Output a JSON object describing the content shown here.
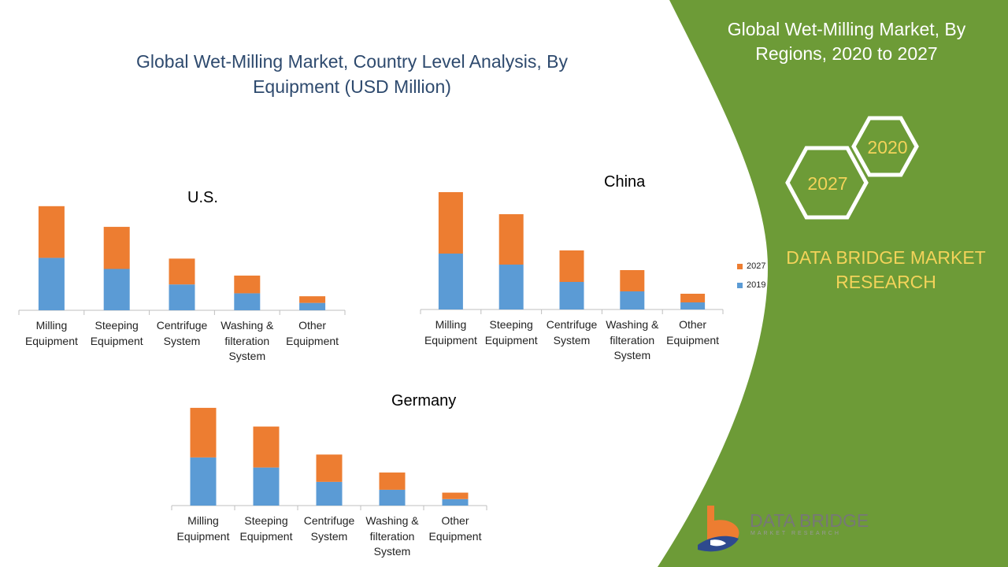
{
  "title_lines": [
    "Global Wet-Milling Market, Country Level Analysis, By",
    "Equipment (USD Million)"
  ],
  "right_panel": {
    "title_lines": [
      "Global Wet-Milling Market, By",
      "Regions, 2020 to 2027"
    ],
    "hex_2020": "2020",
    "hex_2027": "2027",
    "brand_lines": [
      "DATA BRIDGE MARKET",
      "RESEARCH"
    ],
    "logo_name": "DATA BRIDGE",
    "logo_tagline": "MARKET RESEARCH",
    "colors": {
      "green": "#6d9b37",
      "gold": "#f3d35a"
    }
  },
  "legend": [
    {
      "name": "2027",
      "color": "#ed7d31"
    },
    {
      "name": "2019",
      "color": "#5b9bd5"
    }
  ],
  "chart_data": [
    {
      "type": "bar",
      "stacked": true,
      "title": "U.S.",
      "categories": [
        "Milling Equipment",
        "Steeping Equipment",
        "Centrifuge System",
        "Washing & filteration System",
        "Other Equipment"
      ],
      "category_lines": [
        [
          "Milling",
          "Equipment"
        ],
        [
          "Steeping",
          "Equipment"
        ],
        [
          "Centrifuge",
          "System"
        ],
        [
          "Washing &",
          "filteration",
          "System"
        ],
        [
          "Other",
          "Equipment"
        ]
      ],
      "series": [
        {
          "name": "2019",
          "color": "#5b9bd5",
          "values": [
            71,
            56,
            35,
            23,
            10
          ]
        },
        {
          "name": "2027",
          "color": "#ed7d31",
          "values": [
            70,
            57,
            35,
            24,
            9
          ]
        }
      ],
      "ylim": [
        0,
        160
      ],
      "grid": false
    },
    {
      "type": "bar",
      "stacked": true,
      "title": "China",
      "categories": [
        "Milling Equipment",
        "Steeping Equipment",
        "Centrifuge System",
        "Washing & filteration System",
        "Other Equipment"
      ],
      "category_lines": [
        [
          "Milling",
          "Equipment"
        ],
        [
          "Steeping",
          "Equipment"
        ],
        [
          "Centrifuge",
          "System"
        ],
        [
          "Washing &",
          "filteration",
          "System"
        ],
        [
          "Other",
          "Equipment"
        ]
      ],
      "series": [
        {
          "name": "2019",
          "color": "#5b9bd5",
          "values": [
            71,
            57,
            35,
            23,
            9
          ]
        },
        {
          "name": "2027",
          "color": "#ed7d31",
          "values": [
            78,
            64,
            40,
            27,
            11
          ]
        }
      ],
      "ylim": [
        0,
        160
      ],
      "grid": false
    },
    {
      "type": "bar",
      "stacked": true,
      "title": "Germany",
      "categories": [
        "Milling Equipment",
        "Steeping Equipment",
        "Centrifuge System",
        "Washing & filteration System",
        "Other Equipment"
      ],
      "category_lines": [
        [
          "Milling",
          "Equipment"
        ],
        [
          "Steeping",
          "Equipment"
        ],
        [
          "Centrifuge",
          "System"
        ],
        [
          "Washing &",
          "filteration",
          "System"
        ],
        [
          "Other",
          "Equipment"
        ]
      ],
      "series": [
        {
          "name": "2019",
          "color": "#5b9bd5",
          "values": [
            67,
            53,
            33,
            22,
            9
          ]
        },
        {
          "name": "2027",
          "color": "#ed7d31",
          "values": [
            69,
            57,
            38,
            24,
            9
          ]
        }
      ],
      "ylim": [
        0,
        160
      ],
      "grid": false
    }
  ]
}
